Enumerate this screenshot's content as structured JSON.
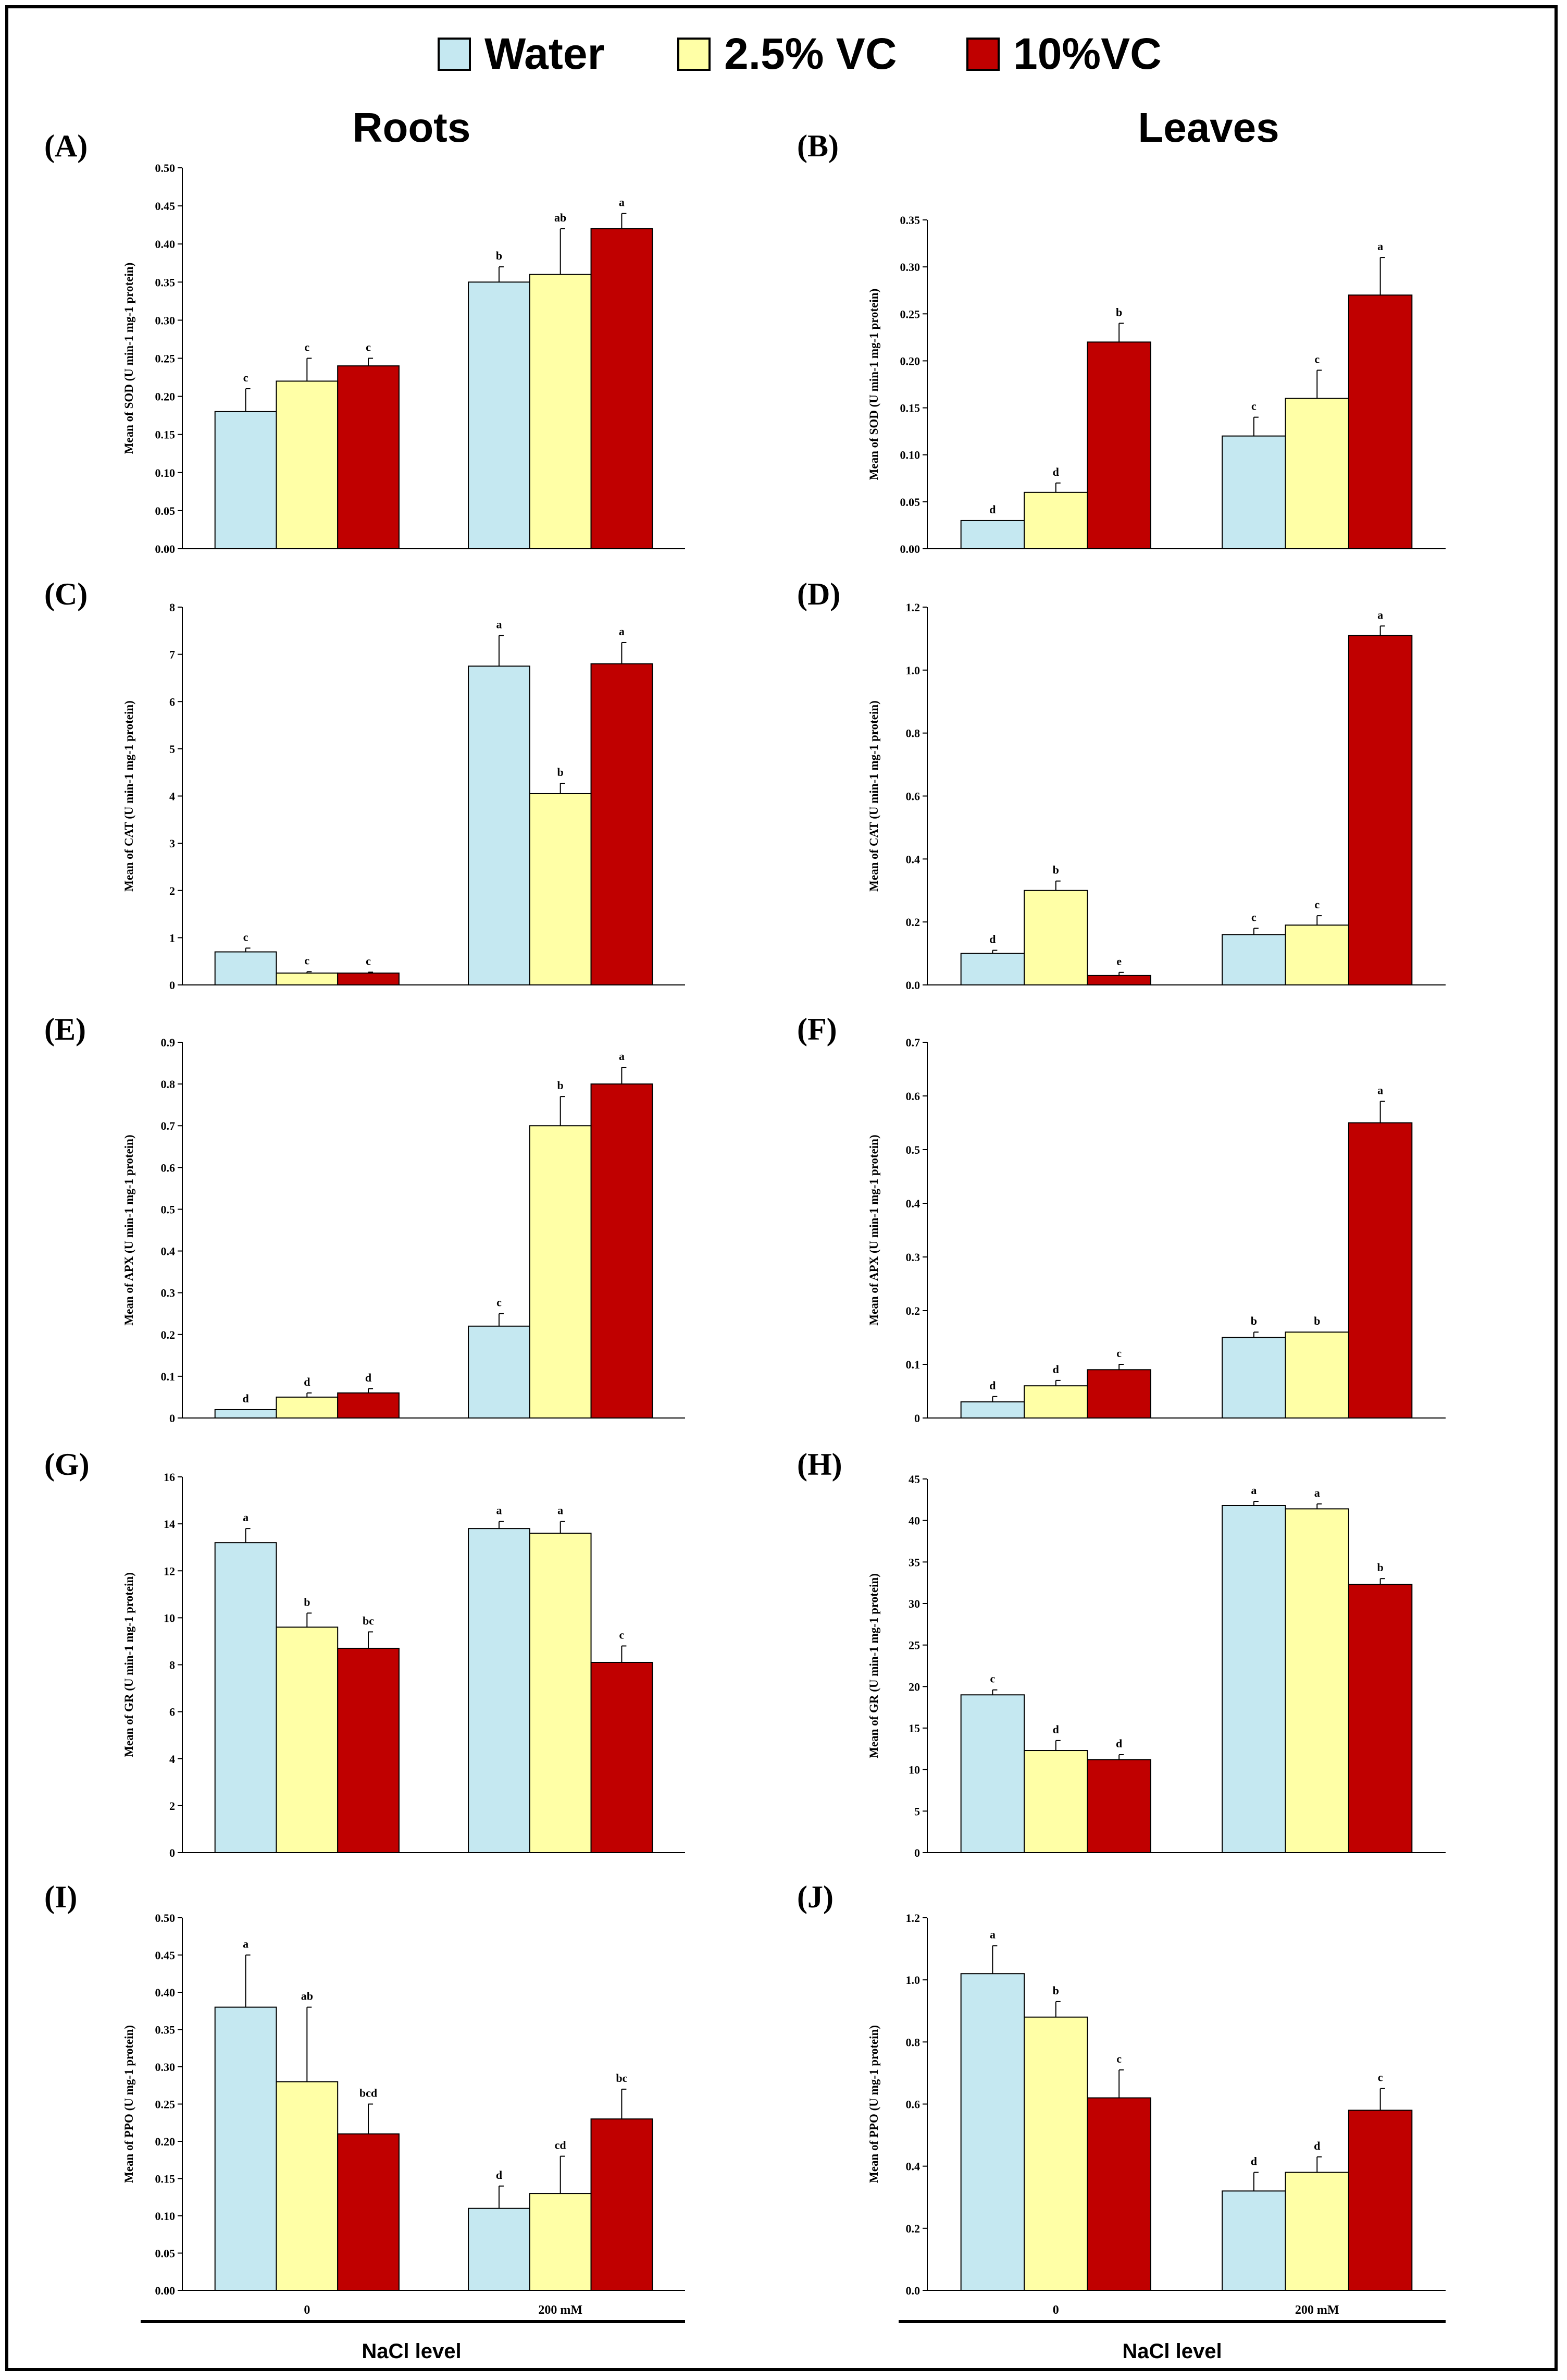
{
  "legend": {
    "items": [
      {
        "label": "Water",
        "color": "#c5e8f1"
      },
      {
        "label": "2.5% VC",
        "color": "#ffffa6"
      },
      {
        "label": "10%VC",
        "color": "#c00000"
      }
    ]
  },
  "columns": {
    "left": "Roots",
    "right": "Leaves"
  },
  "xaxis": {
    "title": "NaCl level",
    "categories": [
      "0",
      "200 mM"
    ]
  },
  "chart_data": [
    {
      "panel": "(A)",
      "type": "bar",
      "title": "",
      "ylabel": "Mean of SOD (U min-1 mg-1 protein)",
      "ylim": [
        0,
        0.5
      ],
      "ticks": [
        "0.00",
        "0.05",
        "0.10",
        "0.15",
        "0.20",
        "0.25",
        "0.30",
        "0.35",
        "0.40",
        "0.45",
        "0.50"
      ],
      "categories": [
        "0",
        "200 mM"
      ],
      "series": [
        {
          "name": "Water",
          "values": [
            0.18,
            0.35
          ],
          "errors": [
            0.03,
            0.02
          ],
          "letters": [
            "c",
            "b"
          ]
        },
        {
          "name": "2.5% VC",
          "values": [
            0.22,
            0.36
          ],
          "errors": [
            0.03,
            0.06
          ],
          "letters": [
            "c",
            "ab"
          ]
        },
        {
          "name": "10%VC",
          "values": [
            0.24,
            0.42
          ],
          "errors": [
            0.01,
            0.02
          ],
          "letters": [
            "c",
            "a"
          ]
        }
      ]
    },
    {
      "panel": "(B)",
      "type": "bar",
      "title": "",
      "ylabel": "Mean of SOD (U min-1 mg-1 protein)",
      "ylim": [
        0,
        0.35
      ],
      "ticks": [
        "0.00",
        "0.05",
        "0.10",
        "0.15",
        "0.20",
        "0.25",
        "0.30",
        "0.35"
      ],
      "categories": [
        "0",
        "200 mM"
      ],
      "series": [
        {
          "name": "Water",
          "values": [
            0.03,
            0.12
          ],
          "errors": [
            0.0,
            0.02
          ],
          "letters": [
            "d",
            "c"
          ]
        },
        {
          "name": "2.5% VC",
          "values": [
            0.06,
            0.16
          ],
          "errors": [
            0.01,
            0.03
          ],
          "letters": [
            "d",
            "c"
          ]
        },
        {
          "name": "10%VC",
          "values": [
            0.22,
            0.27
          ],
          "errors": [
            0.02,
            0.04
          ],
          "letters": [
            "b",
            "a"
          ]
        }
      ]
    },
    {
      "panel": "(C)",
      "type": "bar",
      "title": "",
      "ylabel": "Mean of CAT (U min-1 mg-1 protein)",
      "ylim": [
        0,
        8
      ],
      "ticks": [
        "0",
        "1",
        "2",
        "3",
        "4",
        "5",
        "6",
        "7",
        "8"
      ],
      "categories": [
        "0",
        "200 mM"
      ],
      "series": [
        {
          "name": "Water",
          "values": [
            0.7,
            6.75
          ],
          "errors": [
            0.08,
            0.65
          ],
          "letters": [
            "c",
            "a"
          ]
        },
        {
          "name": "2.5% VC",
          "values": [
            0.25,
            4.05
          ],
          "errors": [
            0.03,
            0.22
          ],
          "letters": [
            "c",
            "b"
          ]
        },
        {
          "name": "10%VC",
          "values": [
            0.25,
            6.8
          ],
          "errors": [
            0.02,
            0.45
          ],
          "letters": [
            "c",
            "a"
          ]
        }
      ]
    },
    {
      "panel": "(D)",
      "type": "bar",
      "title": "",
      "ylabel": "Mean of CAT (U min-1 mg-1 protein)",
      "ylim": [
        0,
        1.2
      ],
      "ticks": [
        "0.0",
        "0.2",
        "0.4",
        "0.6",
        "0.8",
        "1.0",
        "1.2"
      ],
      "categories": [
        "0",
        "200 mM"
      ],
      "series": [
        {
          "name": "Water",
          "values": [
            0.1,
            0.16
          ],
          "errors": [
            0.01,
            0.02
          ],
          "letters": [
            "d",
            "c"
          ]
        },
        {
          "name": "2.5% VC",
          "values": [
            0.3,
            0.19
          ],
          "errors": [
            0.03,
            0.03
          ],
          "letters": [
            "b",
            "c"
          ]
        },
        {
          "name": "10%VC",
          "values": [
            0.03,
            1.11
          ],
          "errors": [
            0.01,
            0.03
          ],
          "letters": [
            "e",
            "a"
          ]
        }
      ]
    },
    {
      "panel": "(E)",
      "type": "bar",
      "title": "",
      "ylabel": "Mean of APX (U min-1 mg-1 protein)",
      "ylim": [
        0,
        0.9
      ],
      "ticks": [
        "0",
        "0.1",
        "0.2",
        "0.3",
        "0.4",
        "0.5",
        "0.6",
        "0.7",
        "0.8",
        "0.9"
      ],
      "categories": [
        "0",
        "200 mM"
      ],
      "series": [
        {
          "name": "Water",
          "values": [
            0.02,
            0.22
          ],
          "errors": [
            0.0,
            0.03
          ],
          "letters": [
            "d",
            "c"
          ]
        },
        {
          "name": "2.5% VC",
          "values": [
            0.05,
            0.7
          ],
          "errors": [
            0.01,
            0.07
          ],
          "letters": [
            "d",
            "b"
          ]
        },
        {
          "name": "10%VC",
          "values": [
            0.06,
            0.8
          ],
          "errors": [
            0.01,
            0.04
          ],
          "letters": [
            "d",
            "a"
          ]
        }
      ]
    },
    {
      "panel": "(F)",
      "type": "bar",
      "title": "",
      "ylabel": "Mean of APX (U min-1 mg-1 protein)",
      "ylim": [
        0,
        0.7
      ],
      "ticks": [
        "0",
        "0.1",
        "0.2",
        "0.3",
        "0.4",
        "0.5",
        "0.6",
        "0.7"
      ],
      "categories": [
        "0",
        "200 mM"
      ],
      "series": [
        {
          "name": "Water",
          "values": [
            0.03,
            0.15
          ],
          "errors": [
            0.01,
            0.01
          ],
          "letters": [
            "d",
            "b"
          ]
        },
        {
          "name": "2.5% VC",
          "values": [
            0.06,
            0.16
          ],
          "errors": [
            0.01,
            0.0
          ],
          "letters": [
            "d",
            "b"
          ]
        },
        {
          "name": "10%VC",
          "values": [
            0.09,
            0.55
          ],
          "errors": [
            0.01,
            0.04
          ],
          "letters": [
            "c",
            "a"
          ]
        }
      ]
    },
    {
      "panel": "(G)",
      "type": "bar",
      "title": "",
      "ylabel": "Mean of GR (U min-1 mg-1 protein)",
      "ylim": [
        0,
        16
      ],
      "ticks": [
        "0",
        "2",
        "4",
        "6",
        "8",
        "10",
        "12",
        "14",
        "16"
      ],
      "categories": [
        "0",
        "200 mM"
      ],
      "series": [
        {
          "name": "Water",
          "values": [
            13.2,
            13.8
          ],
          "errors": [
            0.6,
            0.3
          ],
          "letters": [
            "a",
            "a"
          ]
        },
        {
          "name": "2.5% VC",
          "values": [
            9.6,
            13.6
          ],
          "errors": [
            0.6,
            0.5
          ],
          "letters": [
            "b",
            "a"
          ]
        },
        {
          "name": "10%VC",
          "values": [
            8.7,
            8.1
          ],
          "errors": [
            0.7,
            0.7
          ],
          "letters": [
            "bc",
            "c"
          ]
        }
      ]
    },
    {
      "panel": "(H)",
      "type": "bar",
      "title": "",
      "ylabel": "Mean of GR (U min-1 mg-1 protein)",
      "ylim": [
        0,
        45
      ],
      "ticks": [
        "0",
        "5",
        "10",
        "15",
        "20",
        "25",
        "30",
        "35",
        "40",
        "45"
      ],
      "categories": [
        "0",
        "200 mM"
      ],
      "series": [
        {
          "name": "Water",
          "values": [
            19.0,
            41.8
          ],
          "errors": [
            0.6,
            0.5
          ],
          "letters": [
            "c",
            "a"
          ]
        },
        {
          "name": "2.5% VC",
          "values": [
            12.3,
            41.4
          ],
          "errors": [
            1.2,
            0.6
          ],
          "letters": [
            "d",
            "a"
          ]
        },
        {
          "name": "10%VC",
          "values": [
            11.2,
            32.3
          ],
          "errors": [
            0.6,
            0.7
          ],
          "letters": [
            "d",
            "b"
          ]
        }
      ]
    },
    {
      "panel": "(I)",
      "type": "bar",
      "title": "",
      "ylabel": "Mean of PPO (U mg-1 protein)",
      "ylim": [
        0,
        0.5
      ],
      "ticks": [
        "0.00",
        "0.05",
        "0.10",
        "0.15",
        "0.20",
        "0.25",
        "0.30",
        "0.35",
        "0.40",
        "0.45",
        "0.50"
      ],
      "categories": [
        "0",
        "200 mM"
      ],
      "series": [
        {
          "name": "Water",
          "values": [
            0.38,
            0.11
          ],
          "errors": [
            0.07,
            0.03
          ],
          "letters": [
            "a",
            "d"
          ]
        },
        {
          "name": "2.5% VC",
          "values": [
            0.28,
            0.13
          ],
          "errors": [
            0.1,
            0.05
          ],
          "letters": [
            "ab",
            "cd"
          ]
        },
        {
          "name": "10%VC",
          "values": [
            0.21,
            0.23
          ],
          "errors": [
            0.04,
            0.04
          ],
          "letters": [
            "bcd",
            "bc"
          ]
        }
      ]
    },
    {
      "panel": "(J)",
      "type": "bar",
      "title": "",
      "ylabel": "Mean of PPO (U mg-1 protein)",
      "ylim": [
        0,
        1.2
      ],
      "ticks": [
        "0.0",
        "0.2",
        "0.4",
        "0.6",
        "0.8",
        "1.0",
        "1.2"
      ],
      "categories": [
        "0",
        "200 mM"
      ],
      "series": [
        {
          "name": "Water",
          "values": [
            1.02,
            0.32
          ],
          "errors": [
            0.09,
            0.06
          ],
          "letters": [
            "a",
            "d"
          ]
        },
        {
          "name": "2.5% VC",
          "values": [
            0.88,
            0.38
          ],
          "errors": [
            0.05,
            0.05
          ],
          "letters": [
            "b",
            "d"
          ]
        },
        {
          "name": "10%VC",
          "values": [
            0.62,
            0.58
          ],
          "errors": [
            0.09,
            0.07
          ],
          "letters": [
            "c",
            "c"
          ]
        }
      ]
    }
  ]
}
